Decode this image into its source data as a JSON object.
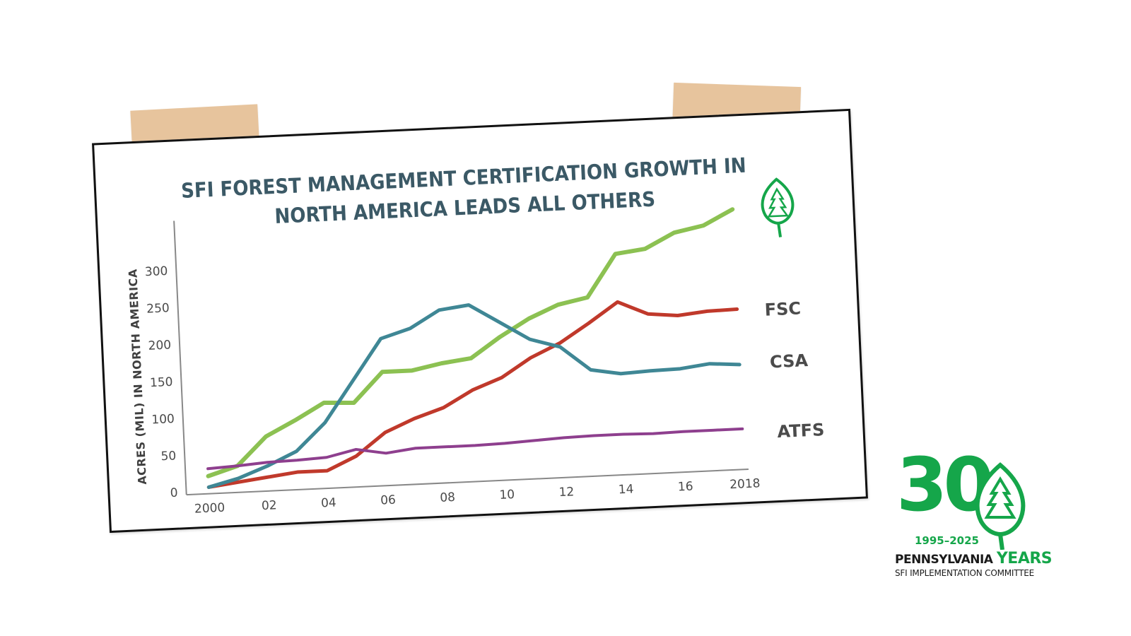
{
  "chart_data": {
    "type": "line",
    "title_lines": [
      "SFI FOREST MANAGEMENT CERTIFICATION GROWTH IN",
      "NORTH AMERICA LEADS ALL OTHERS"
    ],
    "ylabel": "ACRES (MIL) IN NORTH AMERICA",
    "ylim": [
      0,
      340
    ],
    "yticks": [
      0,
      50,
      100,
      150,
      200,
      250,
      300
    ],
    "xlim": [
      2000,
      2018
    ],
    "xticks": [
      2000,
      2002,
      2004,
      2006,
      2008,
      2010,
      2012,
      2014,
      2016,
      2018
    ],
    "xtick_labels": [
      "2000",
      "02",
      "04",
      "06",
      "08",
      "10",
      "12",
      "14",
      "16",
      "2018"
    ],
    "x": [
      2000,
      2001,
      2002,
      2003,
      2004,
      2005,
      2006,
      2007,
      2008,
      2009,
      2010,
      2011,
      2012,
      2013,
      2014,
      2015,
      2016,
      2017,
      2018
    ],
    "series": [
      {
        "name": "SFI",
        "color": "#8cc152",
        "label_is_icon": true,
        "values": [
          20,
          32,
          70,
          90,
          112,
          110,
          150,
          150,
          158,
          163,
          190,
          213,
          230,
          238,
          295,
          300,
          320,
          328,
          348
        ]
      },
      {
        "name": "FSC",
        "color": "#c0392b",
        "values": [
          5,
          10,
          15,
          20,
          20,
          38,
          68,
          85,
          98,
          120,
          135,
          160,
          178,
          203,
          230,
          212,
          208,
          212,
          213
        ]
      },
      {
        "name": "CSA",
        "color": "#3f8795",
        "values": [
          5,
          15,
          30,
          48,
          85,
          140,
          195,
          207,
          230,
          235,
          210,
          185,
          173,
          140,
          133,
          135,
          136,
          141,
          138
        ]
      },
      {
        "name": "ATFS",
        "color": "#8e3f8e",
        "values": [
          30,
          32,
          35,
          36,
          38,
          47,
          40,
          45,
          45,
          45,
          46,
          48,
          50,
          51,
          51,
          50,
          51,
          51,
          51
        ]
      }
    ],
    "grid": false,
    "legend": "right-end labels"
  },
  "badge": {
    "number": "30",
    "years_range": "1995–2025",
    "state": "PENNSYLVANIA",
    "years_word": "YEARS",
    "committee": "SFI IMPLEMENTATION COMMITTEE",
    "brand_color": "#15a64a"
  },
  "icons": {
    "chart_leaf": "sfi-leaf-icon",
    "badge_leaf": "sfi-leaf-icon"
  }
}
